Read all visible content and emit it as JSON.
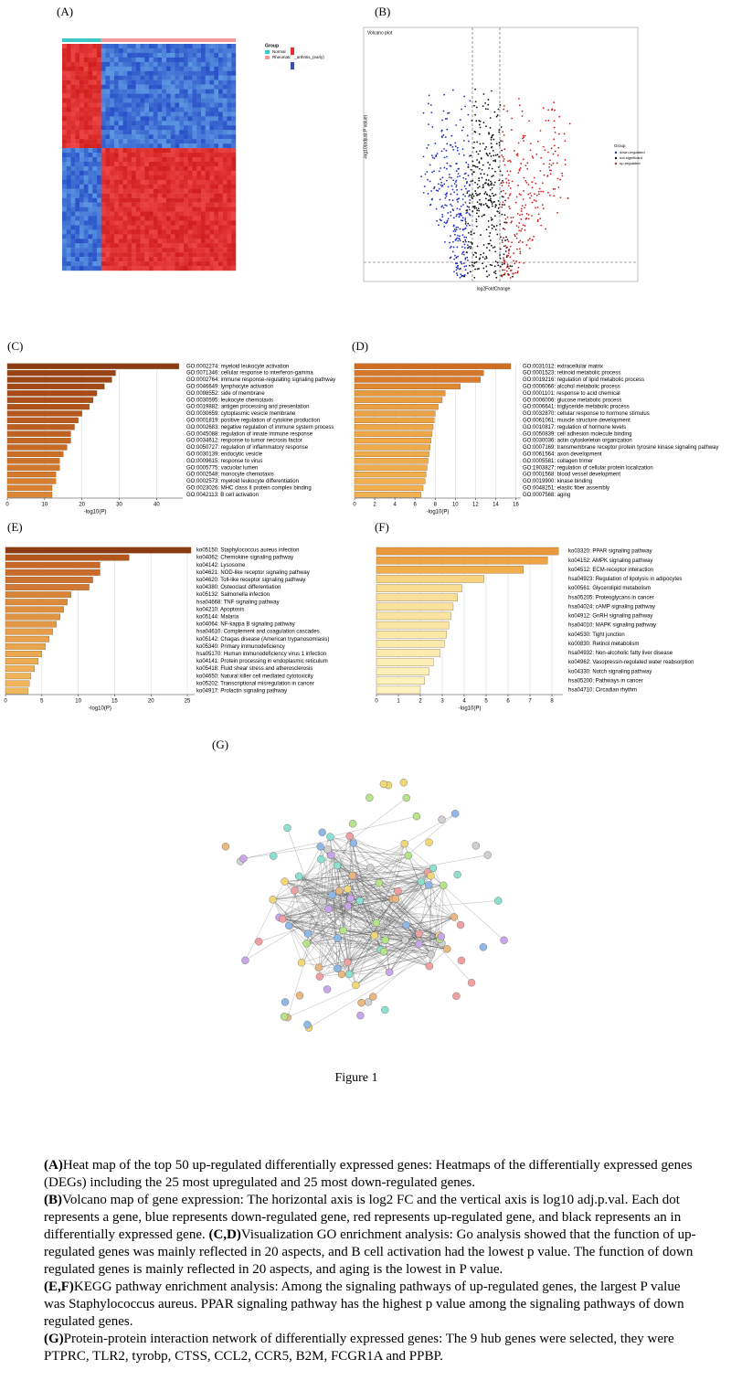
{
  "panels": {
    "a": "(A)",
    "b": "(B)",
    "c": "(C)",
    "d": "(D)",
    "e": "(E)",
    "f": "(F)",
    "g": "(G)"
  },
  "heatmap": {
    "legend_title": "Group",
    "groups": [
      "Normal",
      "Rheumatoid_arthritis_(early)"
    ]
  },
  "volcano": {
    "title": "Volcano plot",
    "x_label": "log2FoldChange",
    "y_label": "-log10(adjust P value)",
    "legend_title": "Group",
    "legend": [
      "down-regulated",
      "not-significant",
      "up-regulated"
    ]
  },
  "chart_data": [
    {
      "type": "barh",
      "x_label": "-log10(P)",
      "xlim": [
        0,
        47
      ],
      "xticks": [
        0,
        10,
        20,
        30,
        40
      ],
      "grid": true,
      "categories": [
        "GO:0002274: myeloid leukocyte activation",
        "GO:0071346: cellular response to interferon-gamma",
        "GO:0002764: immune response-regulating signaling pathway",
        "GO:0046649: lymphocyte activation",
        "GO:0098552: side of membrane",
        "GO:0030595: leukocyte chemotaxis",
        "GO:0019882: antigen processing and presentation",
        "GO:0030659: cytoplasmic vesicle membrane",
        "GO:0001819: positive regulation of cytokine production",
        "GO:0002683: negative regulation of immune system process",
        "GO:0045088: regulation of innate immune response",
        "GO:0034612: response to tumor necrosis factor",
        "GO:0050727: regulation of inflammatory response",
        "GO:0030139: endocytic vesicle",
        "GO:0009615: response to virus",
        "GO:0005775: vacuolar lumen",
        "GO:0002548: monocyte chemotaxis",
        "GO:0002573: myeloid leukocyte differentiation",
        "GO:0023026: MHC class II protein complex binding",
        "GO:0042113: B cell activation"
      ],
      "values": [
        46,
        29,
        28,
        26,
        24,
        23,
        22,
        20,
        19,
        18,
        17,
        17,
        16,
        15,
        14,
        14,
        13,
        13,
        12,
        12
      ],
      "colors": [
        "#8c3b12",
        "#9a4214",
        "#9e4516",
        "#a34817",
        "#a84b18",
        "#ad4f1a",
        "#b0521b",
        "#b5571d",
        "#b95b1f",
        "#bd5f21",
        "#c06322",
        "#c46724",
        "#c76a26",
        "#ca6e28",
        "#ce7229",
        "#d1762b",
        "#d47a2d",
        "#d77e2f",
        "#da8231",
        "#dd8633"
      ]
    },
    {
      "type": "barh",
      "x_label": "-log10(P)",
      "xlim": [
        0,
        16.5
      ],
      "xticks": [
        0,
        2,
        4,
        6,
        8,
        10,
        12,
        14,
        16
      ],
      "grid": true,
      "categories": [
        "GO:0031012: extracellular matrix",
        "GO:0001523: retinoid metabolic process",
        "GO:0019216: regulation of lipid metabolic process",
        "GO:0006066: alcohol metabolic process",
        "GO:0001101: response to acid chemical",
        "GO:0006006: glucose metabolic process",
        "GO:0006641: triglyceride metabolic process",
        "GO:0032870: cellular response to hormone stimulus",
        "GO:0061061: muscle structure development",
        "GO:0010817: regulation of hormone levels",
        "GO:0050839: cell adhesion molecule binding",
        "GO:0030036: actin cytoskeleton organization",
        "GO:0007169: transmembrane receptor protein tyrosine kinase signaling pathway",
        "GO:0061564: axon development",
        "GO:0005581: collagen trimer",
        "GO:1903827: regulation of cellular protein localization",
        "GO:0001568: blood vessel development",
        "GO:0019900: kinase binding",
        "GO:0048251: elastic fiber assembly",
        "GO:0007568: aging"
      ],
      "values": [
        15.5,
        12.8,
        12.5,
        10.5,
        9,
        8.7,
        8.3,
        8,
        7.9,
        7.8,
        7.7,
        7.6,
        7.5,
        7.4,
        7.3,
        7.2,
        7.1,
        7,
        6.8,
        6.6
      ],
      "colors": [
        "#cf6e22",
        "#d8782a",
        "#db7c2c",
        "#e08832",
        "#e69a3d",
        "#e89d40",
        "#ea9f42",
        "#eba244",
        "#eca445",
        "#eda646",
        "#eea747",
        "#eea848",
        "#efaa49",
        "#efab4a",
        "#f0ac4b",
        "#f0ad4c",
        "#f1ae4d",
        "#f1af4e",
        "#f2b04f",
        "#f2b150"
      ]
    },
    {
      "type": "barh",
      "x_label": "-log10(P)",
      "xlim": [
        0,
        26
      ],
      "xticks": [
        0,
        5,
        10,
        15,
        20,
        25
      ],
      "grid": true,
      "categories": [
        "ko05150: Staphylococcus aureus infection",
        "ko04062: Chemokine signaling pathway",
        "ko04142: Lysosome",
        "ko04621: NOD-like receptor signaling pathway",
        "ko04620: Toll-like receptor signaling pathway",
        "ko04380: Osteoclast differentiation",
        "ko05132: Salmonella infection",
        "hsa04668: TNF signaling pathway",
        "ko04210: Apoptosis",
        "ko05144: Malaria",
        "ko04064: NF-kappa B signaling pathway",
        "hsa04610: Complement and coagulation cascades",
        "ko05142: Chagas disease (American trypanosomiasis)",
        "ko05340: Primary immunodeficiency",
        "hsa05170: Human immunodeficiency virus 1 infection",
        "ko04141: Protein processing in endoplasmic reticulum",
        "ko05418: Fluid shear stress and atherosclerosis",
        "ko04650: Natural killer cell mediated cytotoxicity",
        "ko05202: Transcriptional misregulation in cancer",
        "ko04917: Prolactin signaling pathway"
      ],
      "values": [
        25.5,
        17,
        13,
        13,
        12,
        11.5,
        9,
        8.5,
        8,
        7.5,
        7,
        6.5,
        6,
        5.5,
        5,
        4.5,
        4,
        3.5,
        3.3,
        3.1
      ],
      "colors": [
        "#8c3b12",
        "#b4561c",
        "#c8692a",
        "#c96b2b",
        "#cd7130",
        "#d27834",
        "#d98538",
        "#dc8a3b",
        "#de8f3e",
        "#e09341",
        "#e29744",
        "#e59d48",
        "#e7a14b",
        "#e9a54e",
        "#eba951",
        "#edad54",
        "#efb157",
        "#f0b45a",
        "#f1b65c",
        "#f2b85e"
      ]
    },
    {
      "type": "barh",
      "x_label": "-log10(P)",
      "xlim": [
        0,
        8.5
      ],
      "xticks": [
        0,
        1,
        2,
        3,
        4,
        5,
        6,
        7,
        8
      ],
      "grid": true,
      "categories": [
        "ko03320: PPAR signaling pathway",
        "ko04152: AMPK signaling pathway",
        "ko04512: ECM-receptor interaction",
        "hsa04923: Regulation of lipolysis in adipocytes",
        "ko00561: Glycerolipid metabolism",
        "hsa05205: Proteoglycans in cancer",
        "hsa04024: cAMP signaling pathway",
        "ko04912: GnRH signaling pathway",
        "hsa04010: MAPK signaling pathway",
        "ko04530: Tight junction",
        "ko00830: Retinol metabolism",
        "hsa04932: Non-alcoholic fatty liver disease",
        "ko04962: Vasopressin-regulated water reabsorption",
        "ko04330: Notch signaling pathway",
        "hsa05200: Pathways in cancer",
        "hsa04710: Circadian rhythm"
      ],
      "values": [
        8.3,
        7.8,
        6.7,
        4.9,
        3.9,
        3.7,
        3.5,
        3.4,
        3.3,
        3.2,
        3.1,
        2.9,
        2.6,
        2.4,
        2.2,
        2.0
      ],
      "colors": [
        "#e89a3e",
        "#eca445",
        "#f0ae4d",
        "#f6d37e",
        "#f8dd92",
        "#f9e098",
        "#f9e29c",
        "#fae4a0",
        "#fae6a4",
        "#fbe8a8",
        "#fbeaac",
        "#fcecb0",
        "#fceeb4",
        "#fdf0b8",
        "#fdf2bc",
        "#fdf3c0"
      ]
    }
  ],
  "figure_label": "Figure 1",
  "caption": {
    "a_label": "(A)",
    "a_text": "Heat map of the top 50 up-regulated differentially expressed genes: Heatmaps of the differentially expressed genes (DEGs) including the 25 most upregulated and 25 most down-regulated genes.",
    "b_label": "(B)",
    "b_text": "Volcano map of gene expression: The horizontal axis is log2 FC and the vertical axis is log10 adj.p.val. Each dot represents a gene, blue represents down-regulated gene, red represents up-regulated gene, and black represents an in differentially expressed gene.",
    "cd_label": "(C,D)",
    "cd_text": "Visualization GO enrichment analysis: Go analysis showed that the function of up-regulated genes was mainly reflected in 20 aspects, and B cell activation had the lowest p value. The function of down regulated genes is mainly reflected in 20 aspects, and aging is the lowest in P value.",
    "ef_label": "(E,F)",
    "ef_text": "KEGG pathway enrichment analysis: Among the signaling pathways of up-regulated genes, the largest P value was Staphylococcus aureus. PPAR signaling pathway has the highest p value among the signaling pathways of down regulated genes.",
    "g_label": "(G)",
    "g_text": "Protein-protein interaction network of differentially expressed genes: The 9 hub genes were selected, they were PTPRC, TLR2, tyrobp, CTSS, CCL2, CCR5, B2M, FCGR1A and PPBP."
  }
}
